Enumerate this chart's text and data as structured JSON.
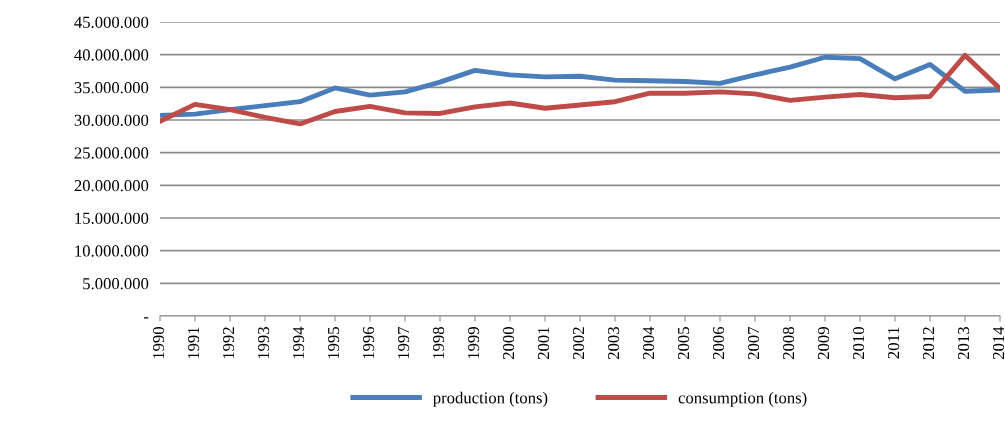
{
  "chart_data": {
    "type": "line",
    "categories": [
      "1990",
      "1991",
      "1992",
      "1993",
      "1994",
      "1995",
      "1996",
      "1997",
      "1998",
      "1999",
      "2000",
      "2001",
      "2002",
      "2003",
      "2004",
      "2005",
      "2006",
      "2007",
      "2008",
      "2009",
      "2010",
      "2011",
      "2012",
      "2013",
      "2014"
    ],
    "series": [
      {
        "name": "production (tons)",
        "color": "#4a7ebb",
        "values": [
          30700000,
          30900000,
          31600000,
          32200000,
          32800000,
          34900000,
          33800000,
          34300000,
          35800000,
          37600000,
          36900000,
          36600000,
          36700000,
          36100000,
          36000000,
          35900000,
          35600000,
          36900000,
          38100000,
          39600000,
          39400000,
          36300000,
          38500000,
          34400000,
          34600000
        ]
      },
      {
        "name": "consumption (tons)",
        "color": "#be4b48",
        "values": [
          29800000,
          32400000,
          31600000,
          30400000,
          29400000,
          31300000,
          32100000,
          31100000,
          31000000,
          32000000,
          32600000,
          31800000,
          32300000,
          32800000,
          34100000,
          34100000,
          34300000,
          34000000,
          33000000,
          33500000,
          33900000,
          33400000,
          33600000,
          39900000,
          34800000
        ]
      }
    ],
    "ylim": [
      0,
      45000000
    ],
    "yticks": [
      {
        "value": 0,
        "label": "-"
      },
      {
        "value": 5000000,
        "label": "5.000.000"
      },
      {
        "value": 10000000,
        "label": "10.000.000"
      },
      {
        "value": 15000000,
        "label": "15.000.000"
      },
      {
        "value": 20000000,
        "label": "20.000.000"
      },
      {
        "value": 25000000,
        "label": "25.000.000"
      },
      {
        "value": 30000000,
        "label": "30.000.000"
      },
      {
        "value": 35000000,
        "label": "35.000.000"
      },
      {
        "value": 40000000,
        "label": "40.000.000"
      },
      {
        "value": 45000000,
        "label": "45.000.000"
      }
    ],
    "grid": "y",
    "legend": "bottom",
    "marker": "none",
    "line_style": "solid"
  }
}
